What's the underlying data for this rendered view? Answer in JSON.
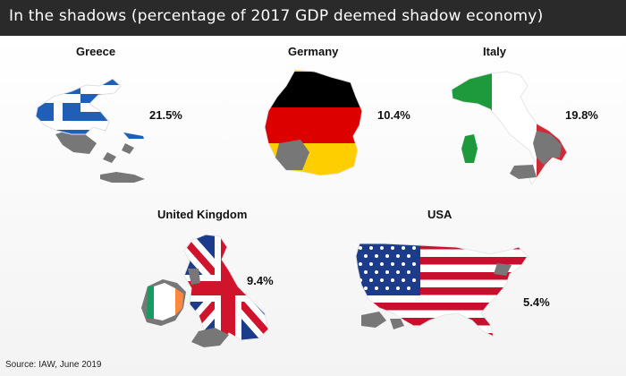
{
  "title": "In the shadows (percentage of 2017 GDP deemed shadow economy)",
  "source": "Source: IAW, June 2019",
  "chart_data": {
    "type": "map",
    "title": "In the shadows (percentage of 2017 GDP deemed shadow economy)",
    "unit": "%",
    "countries": [
      {
        "key": "greece",
        "name": "Greece",
        "value": 21.5,
        "label": "21.5%"
      },
      {
        "key": "germany",
        "name": "Germany",
        "value": 10.4,
        "label": "10.4%"
      },
      {
        "key": "italy",
        "name": "Italy",
        "value": 19.8,
        "label": "19.8%"
      },
      {
        "key": "uk",
        "name": "United Kingdom",
        "value": 9.4,
        "label": "9.4%"
      },
      {
        "key": "usa",
        "name": "USA",
        "value": 5.4,
        "label": "5.4%"
      }
    ]
  }
}
